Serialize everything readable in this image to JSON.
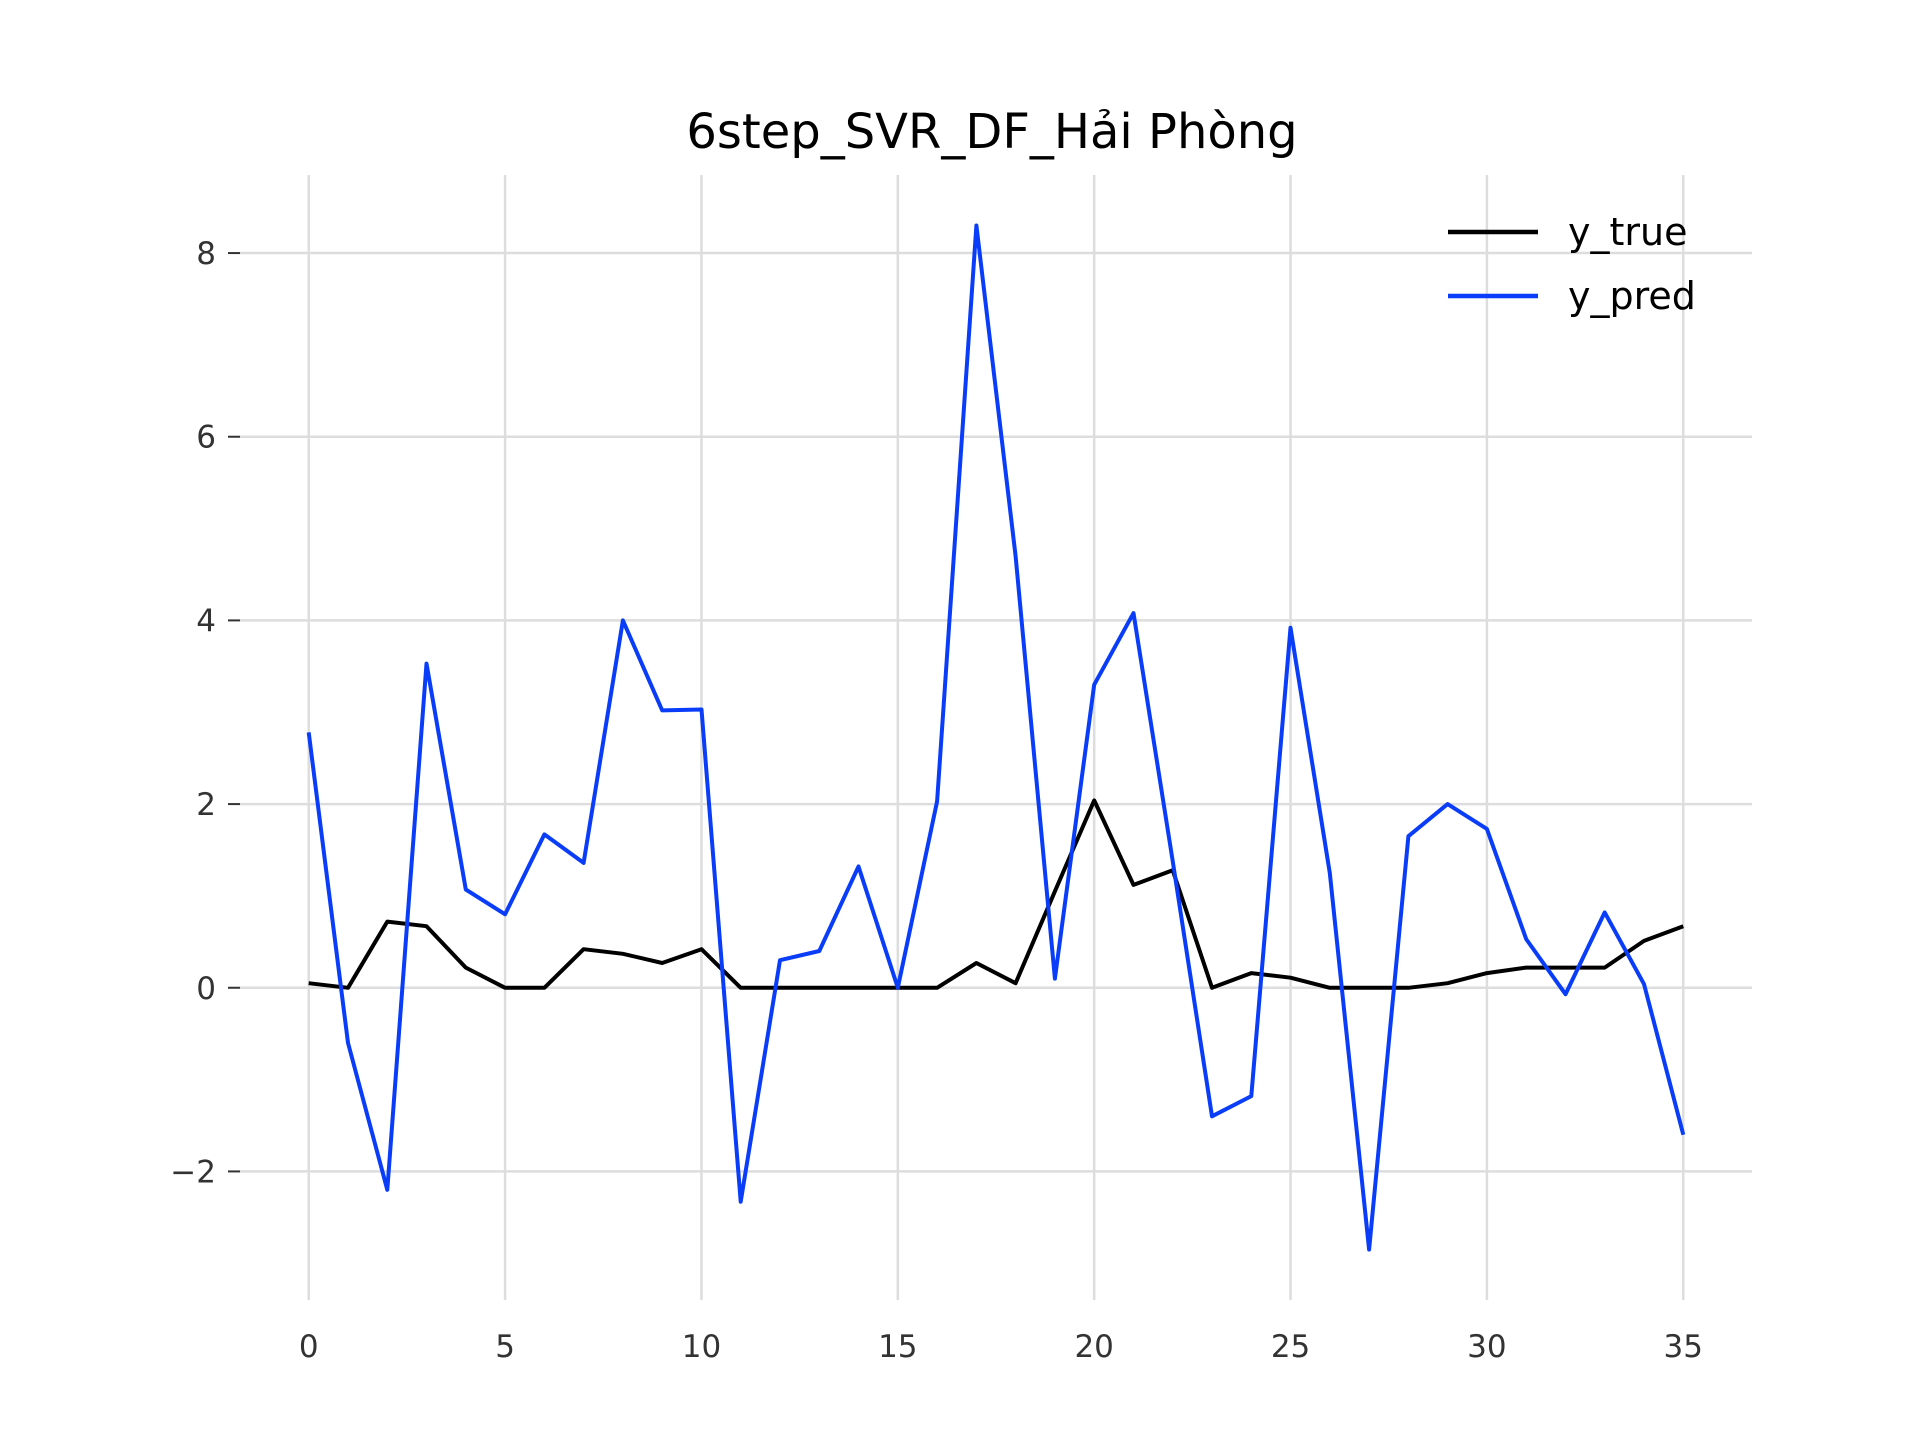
{
  "chart_data": {
    "type": "line",
    "title": "6step_SVR_DF_Hải Phòng",
    "xlabel": "",
    "ylabel": "",
    "xlim": [
      -1.75,
      36.75
    ],
    "ylim": [
      -3.4,
      8.85
    ],
    "xticks": [
      0,
      5,
      10,
      15,
      20,
      25,
      30,
      35
    ],
    "xtick_labels": [
      "0",
      "5",
      "10",
      "15",
      "20",
      "25",
      "30",
      "35"
    ],
    "yticks": [
      -2,
      0,
      2,
      4,
      6,
      8
    ],
    "ytick_labels": [
      "−2",
      "0",
      "2",
      "4",
      "6",
      "8"
    ],
    "grid": true,
    "legend_position": "top-right",
    "x": [
      0,
      1,
      2,
      3,
      4,
      5,
      6,
      7,
      8,
      9,
      10,
      11,
      12,
      13,
      14,
      15,
      16,
      17,
      18,
      19,
      20,
      21,
      22,
      23,
      24,
      25,
      26,
      27,
      28,
      29,
      30,
      31,
      32,
      33,
      34,
      35
    ],
    "series": [
      {
        "name": "y_true",
        "color": "#000000",
        "values": [
          0.05,
          0.0,
          0.72,
          0.67,
          0.22,
          0.0,
          0.0,
          0.42,
          0.37,
          0.27,
          0.42,
          0.0,
          0.0,
          0.0,
          0.0,
          0.0,
          0.0,
          0.27,
          0.05,
          1.05,
          2.04,
          1.12,
          1.28,
          0.0,
          0.16,
          0.11,
          0.0,
          0.0,
          0.0,
          0.05,
          0.16,
          0.22,
          0.22,
          0.22,
          0.51,
          0.67
        ]
      },
      {
        "name": "y_pred",
        "color": "#0a3dfa",
        "values": [
          2.78,
          -0.6,
          -2.2,
          3.53,
          1.07,
          0.8,
          1.67,
          1.36,
          4.0,
          3.02,
          3.03,
          -2.33,
          0.3,
          0.4,
          1.32,
          0.0,
          2.03,
          8.3,
          4.7,
          0.1,
          3.3,
          4.08,
          1.38,
          -1.4,
          -1.18,
          3.92,
          1.25,
          -2.85,
          1.65,
          2.0,
          1.73,
          0.53,
          -0.07,
          0.82,
          0.04,
          -1.6
        ]
      }
    ]
  }
}
